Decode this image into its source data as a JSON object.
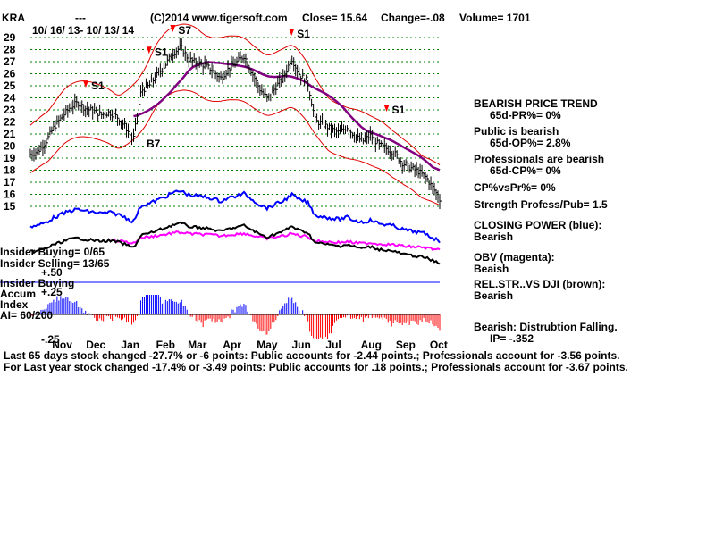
{
  "header": {
    "symbol": "KRA",
    "dashes": "---",
    "copyright": "(C)2014 www.tigersoft.com",
    "close": "Close=  15.64",
    "change": "Change=-.08",
    "volume": "Volume= 1701",
    "date_range": "10/ 16/ 13- 10/ 13/ 14"
  },
  "side_panel": {
    "trend_title": "BEARISH PRICE TREND",
    "pr": "65d-PR%= 0%",
    "public_title": "Public is bearish",
    "op": "65d-OP%= 2.8%",
    "pro_title": "Professionals are bearish",
    "cp": "65d-CP%= 0%",
    "cpvspr": "CP%vsPr%=  0%",
    "strength": "Strength Profess/Pub= 1.5",
    "closing_power_title": "CLOSING POWER (blue):",
    "closing_power_state": "Bearish",
    "obv_title": "OBV (magenta):",
    "obv_state": "Beaish",
    "relstr_title": "REL.STR..VS DJI (brown):",
    "relstr_state": "Bearish",
    "distribution": "Bearish: Distrubtion Falling.",
    "ip": "IP= -.352"
  },
  "insider": {
    "buying": "Insider Buying= 0/65",
    "selling": "Insider Selling= 13/65",
    "buying2": "Insider Buying",
    "plus50": "+.50",
    "accum": "Accum",
    "plus25": "+.25",
    "index": "Index",
    "ai": "AI= 60/200",
    "minus25": "-.25"
  },
  "footer": {
    "line1": "Last 65 days stock changed -27.7% or -6 points:  Public accounts for -2.44 points.;  Professionals account for -3.56 points.",
    "line2": "For Last year stock changed -17.4% or -3.49 points:  Public accounts for  .18 points.;  Professionals account for -3.67 points."
  },
  "colors": {
    "price_bars": "#000000",
    "grid": "#008000",
    "bands": "#e00000",
    "moving_average": "#800080",
    "closing_power": "#0000ff",
    "obv": "#ff00ff",
    "rel_strength": "#000000",
    "accum_positive": "#0000ff",
    "accum_negative": "#ff0000",
    "signal": "#ff0000",
    "insider_line": "#0000ff"
  },
  "chart_data": {
    "type": "bar",
    "title": "",
    "xlabel": "",
    "ylabel": "",
    "ylim": [
      15,
      29
    ],
    "yticks": [
      15,
      16,
      17,
      18,
      19,
      20,
      21,
      22,
      23,
      24,
      25,
      26,
      27,
      28,
      29
    ],
    "months": [
      "Nov",
      "Dec",
      "Jan",
      "Feb",
      "Mar",
      "Apr",
      "May",
      "Jun",
      "Jul",
      "Aug",
      "Sep",
      "Oct"
    ],
    "grid": true,
    "close_series": [
      [
        "2013-10-16",
        19.3
      ],
      [
        "2013-10-23",
        19.6
      ],
      [
        "2013-10-30",
        20.4
      ],
      [
        "2013-11-06",
        21.6
      ],
      [
        "2013-11-13",
        22.4
      ],
      [
        "2013-11-20",
        23.2
      ],
      [
        "2013-11-27",
        23.6
      ],
      [
        "2013-12-04",
        23.1
      ],
      [
        "2013-12-11",
        22.9
      ],
      [
        "2013-12-18",
        22.6
      ],
      [
        "2013-12-25",
        22.8
      ],
      [
        "2014-01-01",
        22.4
      ],
      [
        "2014-01-08",
        21.6
      ],
      [
        "2014-01-15",
        20.5
      ],
      [
        "2014-01-22",
        24.6
      ],
      [
        "2014-01-29",
        25.0
      ],
      [
        "2014-02-05",
        25.9
      ],
      [
        "2014-02-12",
        26.7
      ],
      [
        "2014-02-19",
        27.7
      ],
      [
        "2014-02-26",
        28.2
      ],
      [
        "2014-03-05",
        27.2
      ],
      [
        "2014-03-12",
        26.9
      ],
      [
        "2014-03-19",
        26.7
      ],
      [
        "2014-03-26",
        26.3
      ],
      [
        "2014-04-02",
        25.6
      ],
      [
        "2014-04-09",
        26.4
      ],
      [
        "2014-04-16",
        26.9
      ],
      [
        "2014-04-23",
        27.5
      ],
      [
        "2014-04-30",
        26.1
      ],
      [
        "2014-05-07",
        24.7
      ],
      [
        "2014-05-14",
        23.9
      ],
      [
        "2014-05-21",
        24.9
      ],
      [
        "2014-05-28",
        25.7
      ],
      [
        "2014-06-04",
        27.3
      ],
      [
        "2014-06-11",
        25.9
      ],
      [
        "2014-06-18",
        25.4
      ],
      [
        "2014-06-25",
        22.1
      ],
      [
        "2014-07-02",
        21.8
      ],
      [
        "2014-07-09",
        21.4
      ],
      [
        "2014-07-16",
        21.1
      ],
      [
        "2014-07-23",
        21.6
      ],
      [
        "2014-07-30",
        20.8
      ],
      [
        "2014-08-06",
        20.4
      ],
      [
        "2014-08-13",
        20.9
      ],
      [
        "2014-08-20",
        20.1
      ],
      [
        "2014-08-27",
        19.8
      ],
      [
        "2014-09-03",
        19.4
      ],
      [
        "2014-09-10",
        18.6
      ],
      [
        "2014-09-17",
        18.2
      ],
      [
        "2014-09-24",
        17.9
      ],
      [
        "2014-10-01",
        17.4
      ],
      [
        "2014-10-13",
        15.64
      ]
    ],
    "signals": [
      {
        "label": "S1",
        "date": "2013-12-04",
        "price": 24.4
      },
      {
        "label": "S1",
        "date": "2014-01-29",
        "price": 27.2
      },
      {
        "label": "S7",
        "date": "2014-02-19",
        "price": 29.0
      },
      {
        "label": "S1",
        "date": "2014-06-04",
        "price": 28.7
      },
      {
        "label": "S1",
        "date": "2014-08-27",
        "price": 22.4
      },
      {
        "label": "B7",
        "date": "2014-01-22",
        "price": 19.6
      }
    ]
  }
}
